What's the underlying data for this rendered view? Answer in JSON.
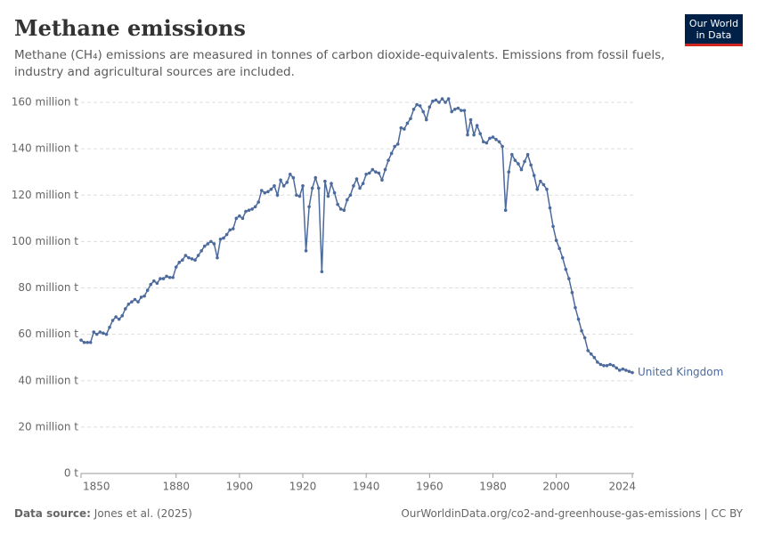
{
  "chart_data": {
    "type": "line",
    "title": "Methane emissions",
    "subtitle": [
      "Methane (CH₄) emissions are measured in tonnes of carbon dioxide-equivalents. Emissions from fossil fuels,",
      "industry and agricultural sources are included."
    ],
    "logo": [
      "Our World",
      "in Data"
    ],
    "source_label": "Data source:",
    "source": "Jones et al. (2025)",
    "footer_right": "OurWorldinData.org/co2-and-greenhouse-gas-emissions | CC BY",
    "x": [
      1850,
      1851,
      1852,
      1853,
      1854,
      1855,
      1856,
      1857,
      1858,
      1859,
      1860,
      1861,
      1862,
      1863,
      1864,
      1865,
      1866,
      1867,
      1868,
      1869,
      1870,
      1871,
      1872,
      1873,
      1874,
      1875,
      1876,
      1877,
      1878,
      1879,
      1880,
      1881,
      1882,
      1883,
      1884,
      1885,
      1886,
      1887,
      1888,
      1889,
      1890,
      1891,
      1892,
      1893,
      1894,
      1895,
      1896,
      1897,
      1898,
      1899,
      1900,
      1901,
      1902,
      1903,
      1904,
      1905,
      1906,
      1907,
      1908,
      1909,
      1910,
      1911,
      1912,
      1913,
      1914,
      1915,
      1916,
      1917,
      1918,
      1919,
      1920,
      1921,
      1922,
      1923,
      1924,
      1925,
      1926,
      1927,
      1928,
      1929,
      1930,
      1931,
      1932,
      1933,
      1934,
      1935,
      1936,
      1937,
      1938,
      1939,
      1940,
      1941,
      1942,
      1943,
      1944,
      1945,
      1946,
      1947,
      1948,
      1949,
      1950,
      1951,
      1952,
      1953,
      1954,
      1955,
      1956,
      1957,
      1958,
      1959,
      1960,
      1961,
      1962,
      1963,
      1964,
      1965,
      1966,
      1967,
      1968,
      1969,
      1970,
      1971,
      1972,
      1973,
      1974,
      1975,
      1976,
      1977,
      1978,
      1979,
      1980,
      1981,
      1982,
      1983,
      1984,
      1985,
      1986,
      1987,
      1988,
      1989,
      1990,
      1991,
      1992,
      1993,
      1994,
      1995,
      1996,
      1997,
      1998,
      1999,
      2000,
      2001,
      2002,
      2003,
      2004,
      2005,
      2006,
      2007,
      2008,
      2009,
      2010,
      2011,
      2012,
      2013,
      2014,
      2015,
      2016,
      2017,
      2018,
      2019,
      2020,
      2021,
      2022,
      2023,
      2024
    ],
    "series": [
      {
        "name": "United Kingdom",
        "color": "#4c6a9c",
        "values": [
          57.5,
          56.5,
          56.5,
          56.5,
          61,
          60,
          61,
          60.5,
          60,
          63,
          66,
          67.5,
          66.5,
          68,
          71,
          73,
          74,
          75,
          74,
          76,
          76.5,
          79,
          81.5,
          83,
          82,
          84,
          84,
          85,
          84.5,
          84.5,
          89,
          91,
          92,
          94,
          93,
          92.5,
          92,
          94,
          96,
          98,
          99,
          100,
          99,
          93,
          101,
          101.5,
          103,
          105,
          105.5,
          110,
          111,
          110,
          113,
          113.5,
          114,
          115,
          117,
          122,
          121,
          121.5,
          122.5,
          124,
          120,
          126.5,
          124,
          125.5,
          129,
          127.5,
          120,
          119.5,
          124,
          96,
          115,
          123,
          127.5,
          123,
          87,
          126,
          119.5,
          125,
          121,
          116,
          114,
          113.5,
          118,
          120,
          124,
          127,
          123,
          125,
          129,
          129.5,
          131,
          130,
          129.5,
          126.5,
          131,
          135,
          138,
          141,
          142,
          149,
          148.5,
          151,
          153,
          157,
          159,
          158.5,
          156,
          152.5,
          158,
          160.5,
          161,
          160,
          161.5,
          160,
          161.5,
          156,
          157,
          157.5,
          156.5,
          156.5,
          146,
          152.5,
          146,
          150,
          146.5,
          143,
          142.5,
          144.5,
          145,
          144,
          143,
          141,
          113.5,
          130,
          137.5,
          135,
          133.5,
          131,
          134.5,
          137.5,
          133,
          128.5,
          122.5,
          126,
          124.5,
          122.5,
          114.5,
          106.5,
          100.5,
          97,
          93,
          88,
          84,
          78,
          71.5,
          66.5,
          61.5,
          58.5,
          53,
          51.5,
          50,
          48,
          47,
          46.5,
          46.5,
          47,
          46.5,
          45.5,
          44.5,
          45,
          44.5,
          44,
          43.5
        ]
      }
    ],
    "xlim": [
      1850,
      2024
    ],
    "xticks": [
      1850,
      1880,
      1900,
      1920,
      1940,
      1960,
      1980,
      2000,
      2024
    ],
    "ylim": [
      0,
      160
    ],
    "yticks": [
      {
        "value": 0,
        "label": "0 t"
      },
      {
        "value": 20,
        "label": "20 million t"
      },
      {
        "value": 40,
        "label": "40 million t"
      },
      {
        "value": 60,
        "label": "60 million t"
      },
      {
        "value": 80,
        "label": "80 million t"
      },
      {
        "value": 100,
        "label": "100 million t"
      },
      {
        "value": 120,
        "label": "120 million t"
      },
      {
        "value": 140,
        "label": "140 million t"
      },
      {
        "value": 160,
        "label": "160 million t"
      }
    ],
    "grid": true
  }
}
